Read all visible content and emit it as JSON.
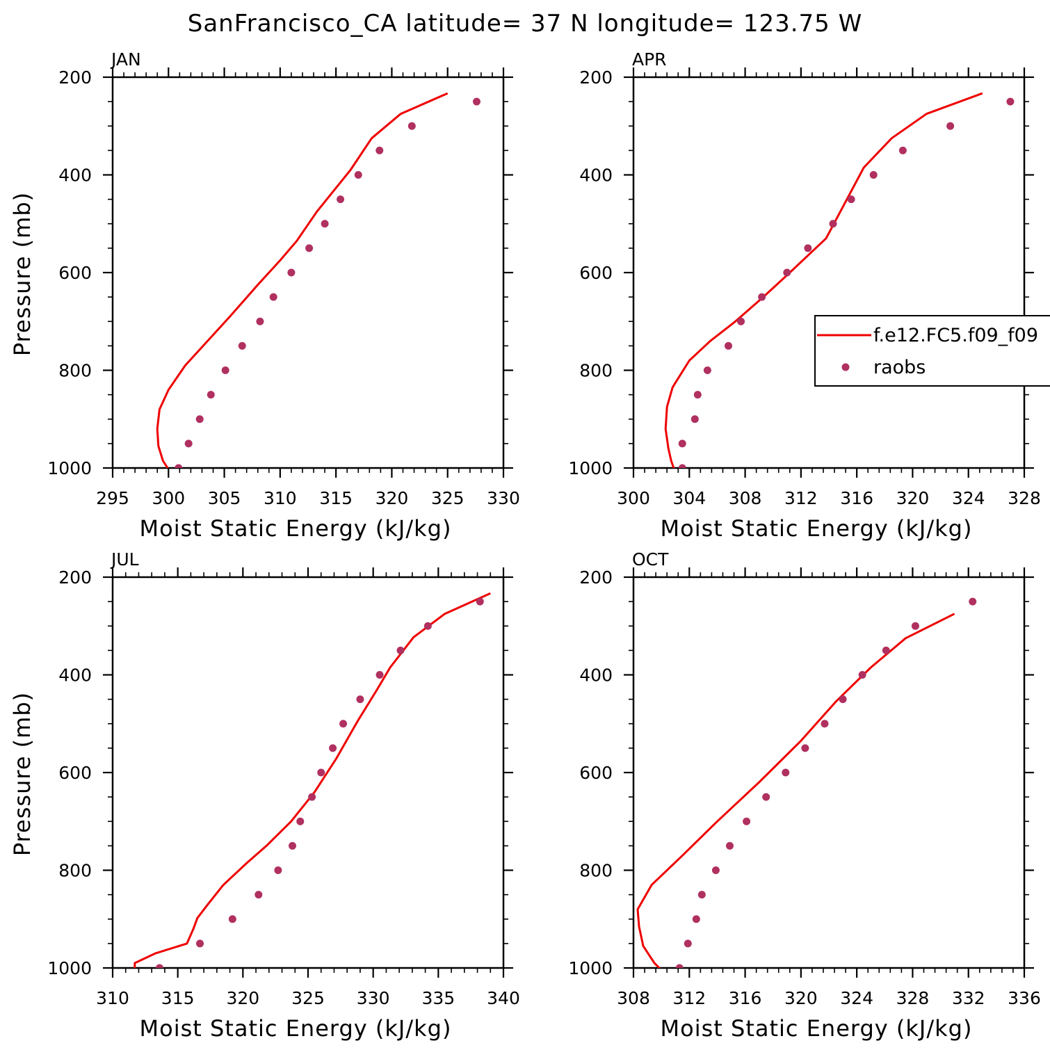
{
  "title": "SanFrancisco_CA  latitude= 37 N longitude= 123.75 W",
  "colors": {
    "model": "#ee0000",
    "obs": "#b03060",
    "axis": "#000000"
  },
  "legend": {
    "model_label": "f.e12.FC5.f09_f09",
    "obs_label": "raobs",
    "panel": 1
  },
  "chart_data": [
    {
      "type": "line",
      "panel_label": "JAN",
      "xlabel": "Moist Static Energy (kJ/kg)",
      "ylabel": "Pressure (mb)",
      "xlim": [
        295,
        330
      ],
      "ylim": [
        200,
        1000
      ],
      "xticks": [
        295,
        300,
        305,
        310,
        315,
        320,
        325,
        330
      ],
      "yticks": [
        200,
        400,
        600,
        800,
        1000
      ],
      "series": [
        {
          "kind": "line",
          "x": [
            300.2,
            299.5,
            299.1,
            299.0,
            299.2,
            300.0,
            301.5,
            303.5,
            305.5,
            308.0,
            310.0,
            311.5,
            313.3,
            316.3,
            318.2,
            320.8,
            325.0
          ],
          "y": [
            1010,
            985,
            955,
            920,
            880,
            840,
            790,
            740,
            690,
            625,
            575,
            535,
            475,
            390,
            325,
            275,
            233
          ]
        },
        {
          "kind": "scatter",
          "x": [
            300.9,
            301.8,
            302.8,
            303.8,
            305.1,
            306.6,
            308.2,
            309.4,
            311.0,
            312.6,
            314.0,
            315.4,
            317.0,
            318.9,
            321.8,
            327.6
          ],
          "y": [
            1000,
            950,
            900,
            850,
            800,
            750,
            700,
            650,
            600,
            550,
            500,
            450,
            400,
            350,
            300,
            250
          ]
        }
      ]
    },
    {
      "type": "line",
      "panel_label": "APR",
      "xlabel": "Moist Static Energy (kJ/kg)",
      "ylabel": "",
      "xlim": [
        300,
        328
      ],
      "ylim": [
        200,
        1000
      ],
      "xticks": [
        300,
        304,
        308,
        312,
        316,
        320,
        324,
        328
      ],
      "yticks": [
        200,
        400,
        600,
        800,
        1000
      ],
      "series": [
        {
          "kind": "line",
          "x": [
            303.0,
            302.7,
            302.5,
            302.3,
            302.4,
            302.8,
            304.0,
            305.5,
            307.3,
            309.3,
            311.2,
            313.8,
            316.5,
            318.5,
            321.0,
            325.0
          ],
          "y": [
            1010,
            985,
            960,
            920,
            875,
            835,
            780,
            740,
            700,
            650,
            600,
            530,
            385,
            325,
            275,
            233
          ]
        },
        {
          "kind": "scatter",
          "x": [
            303.5,
            303.5,
            304.4,
            304.6,
            305.3,
            306.8,
            307.7,
            309.2,
            311.0,
            312.5,
            314.3,
            315.6,
            317.2,
            319.3,
            322.7,
            327.0
          ],
          "y": [
            1000,
            950,
            900,
            850,
            800,
            750,
            700,
            650,
            600,
            550,
            500,
            450,
            400,
            350,
            300,
            250
          ]
        }
      ]
    },
    {
      "type": "line",
      "panel_label": "JUL",
      "xlabel": "Moist Static Energy (kJ/kg)",
      "ylabel": "Pressure (mb)",
      "xlim": [
        310,
        340
      ],
      "ylim": [
        200,
        1000
      ],
      "xticks": [
        310,
        315,
        320,
        325,
        330,
        335,
        340
      ],
      "yticks": [
        200,
        400,
        600,
        800,
        1000
      ],
      "series": [
        {
          "kind": "line",
          "x": [
            311.7,
            311.7,
            313.3,
            315.7,
            316.2,
            316.5,
            317.3,
            318.5,
            320.3,
            321.8,
            323.7,
            325.5,
            327.2,
            328.8,
            330.3,
            331.3,
            333.1,
            335.5,
            339.0
          ],
          "y": [
            1005,
            990,
            970,
            950,
            920,
            898,
            870,
            830,
            785,
            750,
            700,
            640,
            570,
            495,
            430,
            385,
            323,
            275,
            233
          ]
        },
        {
          "kind": "scatter",
          "x": [
            313.6,
            316.7,
            319.2,
            321.2,
            322.7,
            323.8,
            324.4,
            325.3,
            326.0,
            326.9,
            327.7,
            329.0,
            330.5,
            332.1,
            334.2,
            338.2
          ],
          "y": [
            1000,
            950,
            900,
            850,
            800,
            750,
            700,
            650,
            600,
            550,
            500,
            450,
            400,
            350,
            300,
            250
          ]
        }
      ]
    },
    {
      "type": "line",
      "panel_label": "OCT",
      "xlabel": "Moist Static Energy (kJ/kg)",
      "ylabel": "",
      "xlim": [
        308,
        336
      ],
      "ylim": [
        200,
        1000
      ],
      "xticks": [
        308,
        312,
        316,
        320,
        324,
        328,
        332,
        336
      ],
      "yticks": [
        200,
        400,
        600,
        800,
        1000
      ],
      "series": [
        {
          "kind": "line",
          "x": [
            310.2,
            309.5,
            308.7,
            308.4,
            308.3,
            308.5,
            309.3,
            311.5,
            314.0,
            317.0,
            320.0,
            322.5,
            325.0,
            327.5,
            331.0
          ],
          "y": [
            1010,
            990,
            955,
            915,
            880,
            870,
            830,
            770,
            700,
            620,
            535,
            455,
            385,
            325,
            275
          ]
        },
        {
          "kind": "scatter",
          "x": [
            311.3,
            311.9,
            312.5,
            312.9,
            313.9,
            314.9,
            316.1,
            317.5,
            318.9,
            320.3,
            321.7,
            323.0,
            324.4,
            326.1,
            328.2,
            332.3
          ],
          "y": [
            1000,
            950,
            900,
            850,
            800,
            750,
            700,
            650,
            600,
            550,
            500,
            450,
            400,
            350,
            300,
            250
          ]
        }
      ]
    }
  ]
}
